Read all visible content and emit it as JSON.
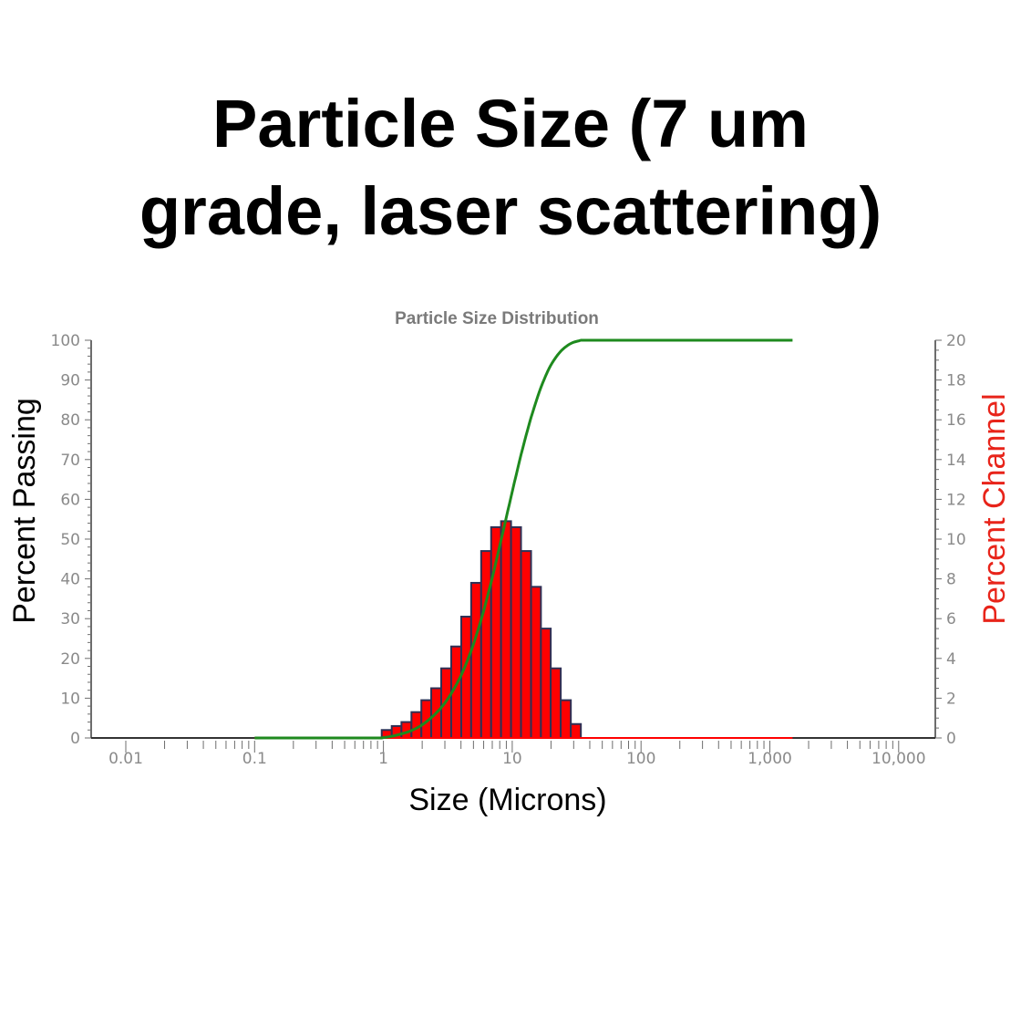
{
  "title_lines": [
    "Particle Size (7 um",
    "grade, laser scattering)"
  ],
  "chart_data": {
    "type": "bar+line",
    "title": "Particle Size Distribution",
    "xlabel": "Size (Microns)",
    "ylabel_left": "Percent Passing",
    "ylabel_right": "Percent Channel",
    "x_scale": "log",
    "xlim": [
      0.01,
      10000
    ],
    "x_ticks": [
      "0.01",
      "0.1",
      "1",
      "10",
      "100",
      "1,000",
      "10,000"
    ],
    "ylim_left": [
      0,
      100
    ],
    "y_ticks_left": [
      "0",
      "10",
      "20",
      "30",
      "40",
      "50",
      "60",
      "70",
      "80",
      "90",
      "100"
    ],
    "ylim_right": [
      0,
      20
    ],
    "y_ticks_right": [
      "0",
      "2",
      "4",
      "6",
      "8",
      "10",
      "12",
      "14",
      "16",
      "18",
      "20"
    ],
    "grid": false,
    "colors": {
      "channel": "#ff0000",
      "channel_edge": "#2e3156",
      "passing": "#1e8a1e",
      "right_label": "#e8241a"
    },
    "bin_edges": [
      0.97,
      1.16,
      1.38,
      1.65,
      1.97,
      2.35,
      2.81,
      3.36,
      4.02,
      4.8,
      5.74,
      6.86,
      8.19,
      9.79,
      11.7,
      14.0,
      16.7,
      19.9,
      23.8,
      28.5,
      34.1
    ],
    "percent_channel": [
      0.4,
      0.6,
      0.8,
      1.3,
      1.9,
      2.5,
      3.5,
      4.6,
      6.1,
      7.8,
      9.4,
      10.6,
      10.9,
      10.6,
      9.4,
      7.6,
      5.5,
      3.5,
      1.9,
      0.7
    ],
    "line_range": [
      0.1,
      1500
    ]
  }
}
